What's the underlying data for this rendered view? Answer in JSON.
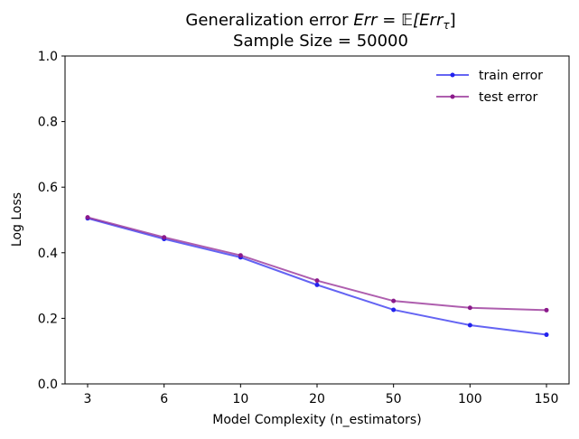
{
  "chart_data": {
    "type": "line",
    "title_line1_prefix": "Generalization error ",
    "title_line1_math": "Err = 𝔼[Err",
    "title_line1_sub": "τ",
    "title_line1_suffix": "]",
    "title_line2": "Sample Size = 50000",
    "xlabel": "Model Complexity (n_estimators)",
    "ylabel": "Log Loss",
    "categories": [
      "3",
      "6",
      "10",
      "20",
      "50",
      "100",
      "150"
    ],
    "ylim": [
      0.0,
      1.0
    ],
    "yticks": [
      "0.0",
      "0.2",
      "0.4",
      "0.6",
      "0.8",
      "1.0"
    ],
    "ytick_values": [
      0.0,
      0.2,
      0.4,
      0.6,
      0.8,
      1.0
    ],
    "legend_position": "top-right",
    "grid": false,
    "series": [
      {
        "name": "train error",
        "color": "#2222ee",
        "values": [
          0.505,
          0.442,
          0.386,
          0.302,
          0.226,
          0.179,
          0.15
        ]
      },
      {
        "name": "test error",
        "color": "#8b1a8b",
        "values": [
          0.508,
          0.447,
          0.392,
          0.315,
          0.253,
          0.232,
          0.225
        ]
      }
    ]
  }
}
